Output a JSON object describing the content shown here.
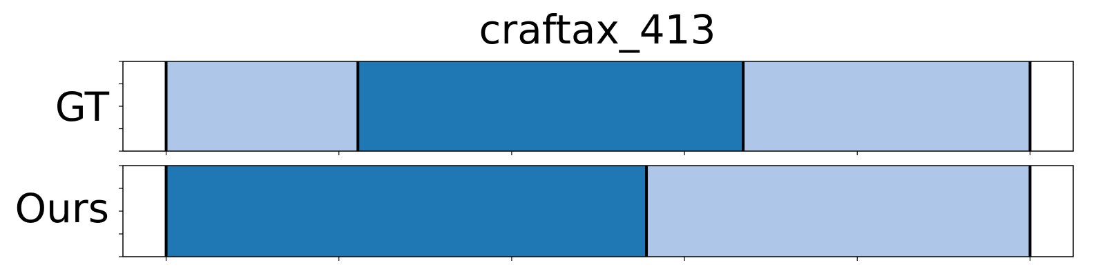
{
  "chart_data": {
    "type": "bar",
    "title": "craftax_413",
    "xlim": [
      -0.25,
      5.25
    ],
    "xticks": [
      0,
      1,
      2,
      3,
      4,
      5
    ],
    "rows": [
      {
        "label": "GT",
        "segments": [
          {
            "start": 0.0,
            "end": 1.11,
            "color": "#aec7e8"
          },
          {
            "start": 1.11,
            "end": 3.34,
            "color": "#1f77b4"
          },
          {
            "start": 3.34,
            "end": 5.0,
            "color": "#aec7e8"
          }
        ],
        "boundaries": [
          0.0,
          1.11,
          3.34,
          5.0
        ]
      },
      {
        "label": "Ours",
        "segments": [
          {
            "start": 0.0,
            "end": 2.78,
            "color": "#1f77b4"
          },
          {
            "start": 2.78,
            "end": 5.0,
            "color": "#aec7e8"
          }
        ],
        "boundaries": [
          0.0,
          2.78,
          5.0
        ]
      }
    ],
    "colors": {
      "dark": "#1f77b4",
      "light": "#aec7e8",
      "boundary": "#000000"
    },
    "grid": false,
    "legend": "none"
  }
}
